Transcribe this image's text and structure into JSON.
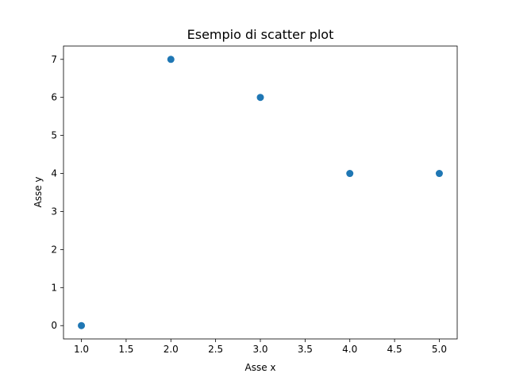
{
  "chart_data": {
    "type": "scatter",
    "title": "Esempio di scatter plot",
    "xlabel": "Asse x",
    "ylabel": "Asse y",
    "x": [
      1,
      2,
      3,
      4,
      5
    ],
    "y": [
      0,
      7,
      6,
      4,
      4
    ],
    "xlim": [
      0.8,
      5.2
    ],
    "ylim": [
      -0.35,
      7.35
    ],
    "xticks": [
      1.0,
      1.5,
      2.0,
      2.5,
      3.0,
      3.5,
      4.0,
      4.5,
      5.0
    ],
    "xtick_labels": [
      "1.0",
      "1.5",
      "2.0",
      "2.5",
      "3.0",
      "3.5",
      "4.0",
      "4.5",
      "5.0"
    ],
    "yticks": [
      0,
      1,
      2,
      3,
      4,
      5,
      6,
      7
    ],
    "ytick_labels": [
      "0",
      "1",
      "2",
      "3",
      "4",
      "5",
      "6",
      "7"
    ],
    "grid": false,
    "marker_color": "#1f77b4"
  }
}
